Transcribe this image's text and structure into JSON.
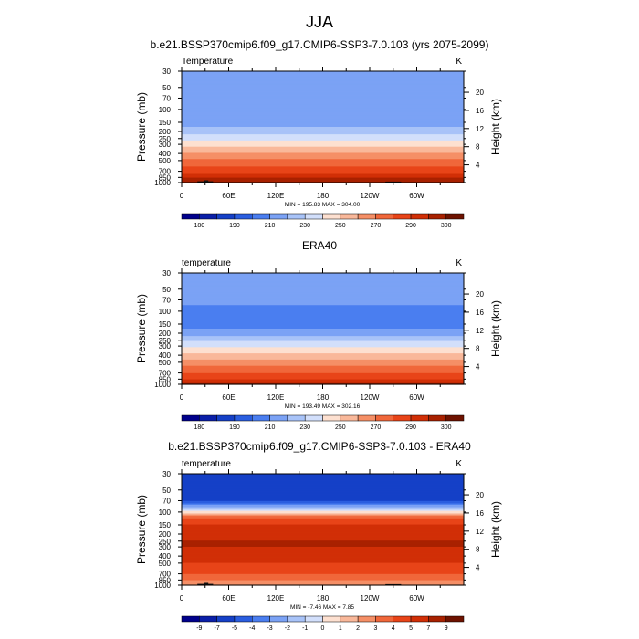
{
  "page_title": "JJA",
  "chart_data": [
    {
      "type": "heatmap",
      "title": "b.e21.BSSP370cmip6.f09_g17.CMIP6-SSP3-7.0.103 (yrs 2075-2099)",
      "variable_label": "Temperature",
      "units": "K",
      "ylabel": "Pressure (mb)",
      "ylabel_right": "Height (km)",
      "x_ticks": [
        "0",
        "60E",
        "120E",
        "180",
        "120W",
        "60W"
      ],
      "x_tick_values": [
        0,
        60,
        120,
        180,
        240,
        300
      ],
      "xlim": [
        0,
        360
      ],
      "y_ticks": [
        "30",
        "50",
        "70",
        "100",
        "150",
        "200",
        "250",
        "300",
        "400",
        "500",
        "700",
        "850",
        "1000"
      ],
      "y_tick_values": [
        30,
        50,
        70,
        100,
        150,
        200,
        250,
        300,
        400,
        500,
        700,
        850,
        1000
      ],
      "ylim": [
        1000,
        30
      ],
      "height_ticks": [
        "20",
        "16",
        "12",
        "8",
        "4"
      ],
      "height_tick_values": [
        20,
        16,
        12,
        8,
        4
      ],
      "stats_text": "MIN = 195.83  MAX = 304.00",
      "colorbar": {
        "labels": [
          "180",
          "190",
          "210",
          "230",
          "250",
          "270",
          "290",
          "300"
        ],
        "colors": [
          "#00008b",
          "#0a1fa8",
          "#1540c7",
          "#2a5ee0",
          "#4a7ef0",
          "#7ba2f5",
          "#a8c3f8",
          "#d2dffb",
          "#fde0d0",
          "#f9b89a",
          "#f58f66",
          "#f0673a",
          "#e84418",
          "#d12f06",
          "#a82100",
          "#6e1200"
        ],
        "label_boundaries": [
          1,
          3,
          5,
          7,
          9,
          11,
          13,
          15
        ]
      },
      "profile": [
        {
          "p": 30,
          "t": 213
        },
        {
          "p": 50,
          "t": 212
        },
        {
          "p": 70,
          "t": 212
        },
        {
          "p": 100,
          "t": 213
        },
        {
          "p": 150,
          "t": 216
        },
        {
          "p": 200,
          "t": 226
        },
        {
          "p": 250,
          "t": 237
        },
        {
          "p": 300,
          "t": 247
        },
        {
          "p": 400,
          "t": 262
        },
        {
          "p": 500,
          "t": 273
        },
        {
          "p": 700,
          "t": 287
        },
        {
          "p": 850,
          "t": 295
        },
        {
          "p": 1000,
          "t": 300
        }
      ],
      "terrain": [
        {
          "lon_start": 20,
          "lon_end": 40,
          "p_top": 960
        },
        {
          "lon_start": 28,
          "lon_end": 34,
          "p_top": 930
        },
        {
          "lon_start": 85,
          "lon_end": 95,
          "p_top": 985
        },
        {
          "lon_start": 260,
          "lon_end": 280,
          "p_top": 970
        }
      ]
    },
    {
      "type": "heatmap",
      "title": "ERA40",
      "variable_label": "temperature",
      "units": "K",
      "ylabel": "Pressure (mb)",
      "ylabel_right": "Height (km)",
      "x_ticks": [
        "0",
        "60E",
        "120E",
        "180",
        "120W",
        "60W"
      ],
      "x_tick_values": [
        0,
        60,
        120,
        180,
        240,
        300
      ],
      "xlim": [
        0,
        360
      ],
      "y_ticks": [
        "30",
        "50",
        "70",
        "100",
        "150",
        "200",
        "250",
        "300",
        "400",
        "500",
        "700",
        "850",
        "1000"
      ],
      "y_tick_values": [
        30,
        50,
        70,
        100,
        150,
        200,
        250,
        300,
        400,
        500,
        700,
        850,
        1000
      ],
      "ylim": [
        1000,
        30
      ],
      "height_ticks": [
        "20",
        "16",
        "12",
        "8",
        "4"
      ],
      "height_tick_values": [
        20,
        16,
        12,
        8,
        4
      ],
      "stats_text": "MIN = 193.49  MAX = 302.16",
      "colorbar": {
        "labels": [
          "180",
          "190",
          "210",
          "230",
          "250",
          "270",
          "290",
          "300"
        ],
        "colors": [
          "#00008b",
          "#0a1fa8",
          "#1540c7",
          "#2a5ee0",
          "#4a7ef0",
          "#7ba2f5",
          "#a8c3f8",
          "#d2dffb",
          "#fde0d0",
          "#f9b89a",
          "#f58f66",
          "#f0673a",
          "#e84418",
          "#d12f06",
          "#a82100",
          "#6e1200"
        ],
        "label_boundaries": [
          1,
          3,
          5,
          7,
          9,
          11,
          13,
          15
        ]
      },
      "profile": [
        {
          "p": 30,
          "t": 216
        },
        {
          "p": 50,
          "t": 214
        },
        {
          "p": 70,
          "t": 212
        },
        {
          "p": 100,
          "t": 207
        },
        {
          "p": 150,
          "t": 206
        },
        {
          "p": 200,
          "t": 215
        },
        {
          "p": 250,
          "t": 228
        },
        {
          "p": 300,
          "t": 238
        },
        {
          "p": 400,
          "t": 253
        },
        {
          "p": 500,
          "t": 265
        },
        {
          "p": 700,
          "t": 280
        },
        {
          "p": 850,
          "t": 290
        },
        {
          "p": 1000,
          "t": 297
        }
      ],
      "terrain": []
    },
    {
      "type": "heatmap",
      "title": "b.e21.BSSP370cmip6.f09_g17.CMIP6-SSP3-7.0.103 - ERA40",
      "variable_label": "temperature",
      "units": "K",
      "ylabel": "Pressure (mb)",
      "ylabel_right": "Height (km)",
      "x_ticks": [
        "0",
        "60E",
        "120E",
        "180",
        "120W",
        "60W"
      ],
      "x_tick_values": [
        0,
        60,
        120,
        180,
        240,
        300
      ],
      "xlim": [
        0,
        360
      ],
      "y_ticks": [
        "30",
        "50",
        "70",
        "100",
        "150",
        "200",
        "250",
        "300",
        "400",
        "500",
        "700",
        "850",
        "1000"
      ],
      "y_tick_values": [
        30,
        50,
        70,
        100,
        150,
        200,
        250,
        300,
        400,
        500,
        700,
        850,
        1000
      ],
      "ylim": [
        1000,
        30
      ],
      "height_ticks": [
        "20",
        "16",
        "12",
        "8",
        "4"
      ],
      "height_tick_values": [
        20,
        16,
        12,
        8,
        4
      ],
      "stats_text": "MIN = -7.46  MAX =  7.85",
      "colorbar": {
        "labels": [
          "-9",
          "-7",
          "-5",
          "-4",
          "-3",
          "-2",
          "-1",
          "0",
          "1",
          "2",
          "3",
          "4",
          "5",
          "7",
          "9"
        ],
        "colors": [
          "#00008b",
          "#0a1fa8",
          "#1540c7",
          "#2a5ee0",
          "#4a7ef0",
          "#7ba2f5",
          "#a8c3f8",
          "#d2dffb",
          "#fde0d0",
          "#f9b89a",
          "#f58f66",
          "#f0673a",
          "#e84418",
          "#d12f06",
          "#a82100",
          "#6e1200"
        ],
        "label_boundaries": [
          1,
          2,
          3,
          4,
          5,
          6,
          7,
          8,
          9,
          10,
          11,
          12,
          13,
          14,
          15
        ]
      },
      "profile": [
        {
          "p": 30,
          "t": -7
        },
        {
          "p": 50,
          "t": -6
        },
        {
          "p": 70,
          "t": -5
        },
        {
          "p": 100,
          "t": 0.5
        },
        {
          "p": 120,
          "t": 4
        },
        {
          "p": 150,
          "t": 5
        },
        {
          "p": 200,
          "t": 6
        },
        {
          "p": 250,
          "t": 7
        },
        {
          "p": 300,
          "t": 7
        },
        {
          "p": 400,
          "t": 6.5
        },
        {
          "p": 500,
          "t": 5
        },
        {
          "p": 700,
          "t": 4
        },
        {
          "p": 850,
          "t": 3
        },
        {
          "p": 1000,
          "t": 2
        }
      ],
      "terrain": [
        {
          "lon_start": 20,
          "lon_end": 40,
          "p_top": 960
        },
        {
          "lon_start": 28,
          "lon_end": 34,
          "p_top": 930
        },
        {
          "lon_start": 85,
          "lon_end": 95,
          "p_top": 985
        },
        {
          "lon_start": 260,
          "lon_end": 280,
          "p_top": 970
        }
      ]
    }
  ]
}
